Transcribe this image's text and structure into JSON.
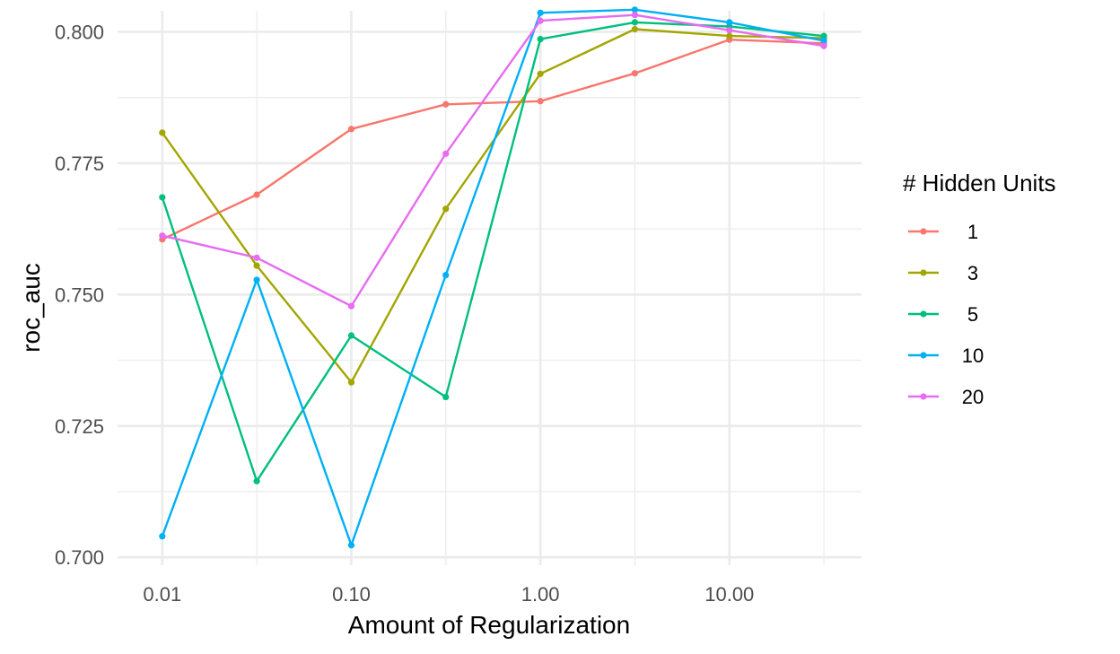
{
  "chart_data": {
    "type": "line",
    "xlabel": "Amount of Regularization",
    "ylabel": "roc_auc",
    "x_scale": "log10",
    "xlim": [
      0.0058,
      50
    ],
    "ylim": [
      0.6985,
      0.804
    ],
    "x_ticks": [
      {
        "value": 0.01,
        "label": "0.01"
      },
      {
        "value": 0.1,
        "label": "0.10"
      },
      {
        "value": 1,
        "label": "1.00"
      },
      {
        "value": 10,
        "label": "10.00"
      }
    ],
    "y_ticks": [
      {
        "value": 0.7,
        "label": "0.700"
      },
      {
        "value": 0.725,
        "label": "0.725"
      },
      {
        "value": 0.75,
        "label": "0.750"
      },
      {
        "value": 0.775,
        "label": "0.775"
      },
      {
        "value": 0.8,
        "label": "0.800"
      }
    ],
    "grid": true,
    "legend": {
      "title": "# Hidden Units",
      "placement": "right"
    },
    "x": [
      0.01,
      0.0316,
      0.1,
      0.316,
      1,
      3.16,
      10,
      31.6
    ],
    "series": [
      {
        "name": "1",
        "color": "#F8766D",
        "values": [
          0.7605,
          0.769,
          0.7815,
          0.7862,
          0.7868,
          0.7921,
          0.7985,
          0.7978
        ]
      },
      {
        "name": "3",
        "color": "#A3A500",
        "values": [
          0.7808,
          0.7555,
          0.7333,
          0.7663,
          0.792,
          0.8005,
          0.7992,
          0.7988
        ]
      },
      {
        "name": "5",
        "color": "#00BF7D",
        "values": [
          0.7685,
          0.7145,
          0.7422,
          0.7305,
          0.7986,
          0.8018,
          0.801,
          0.7992
        ]
      },
      {
        "name": "10",
        "color": "#00B0F6",
        "values": [
          0.704,
          0.7528,
          0.7023,
          0.7537,
          0.8036,
          0.8042,
          0.8018,
          0.7983
        ]
      },
      {
        "name": "20",
        "color": "#E76BF3",
        "values": [
          0.7612,
          0.757,
          0.7478,
          0.7768,
          0.8021,
          0.8032,
          0.8003,
          0.7973
        ]
      }
    ]
  }
}
